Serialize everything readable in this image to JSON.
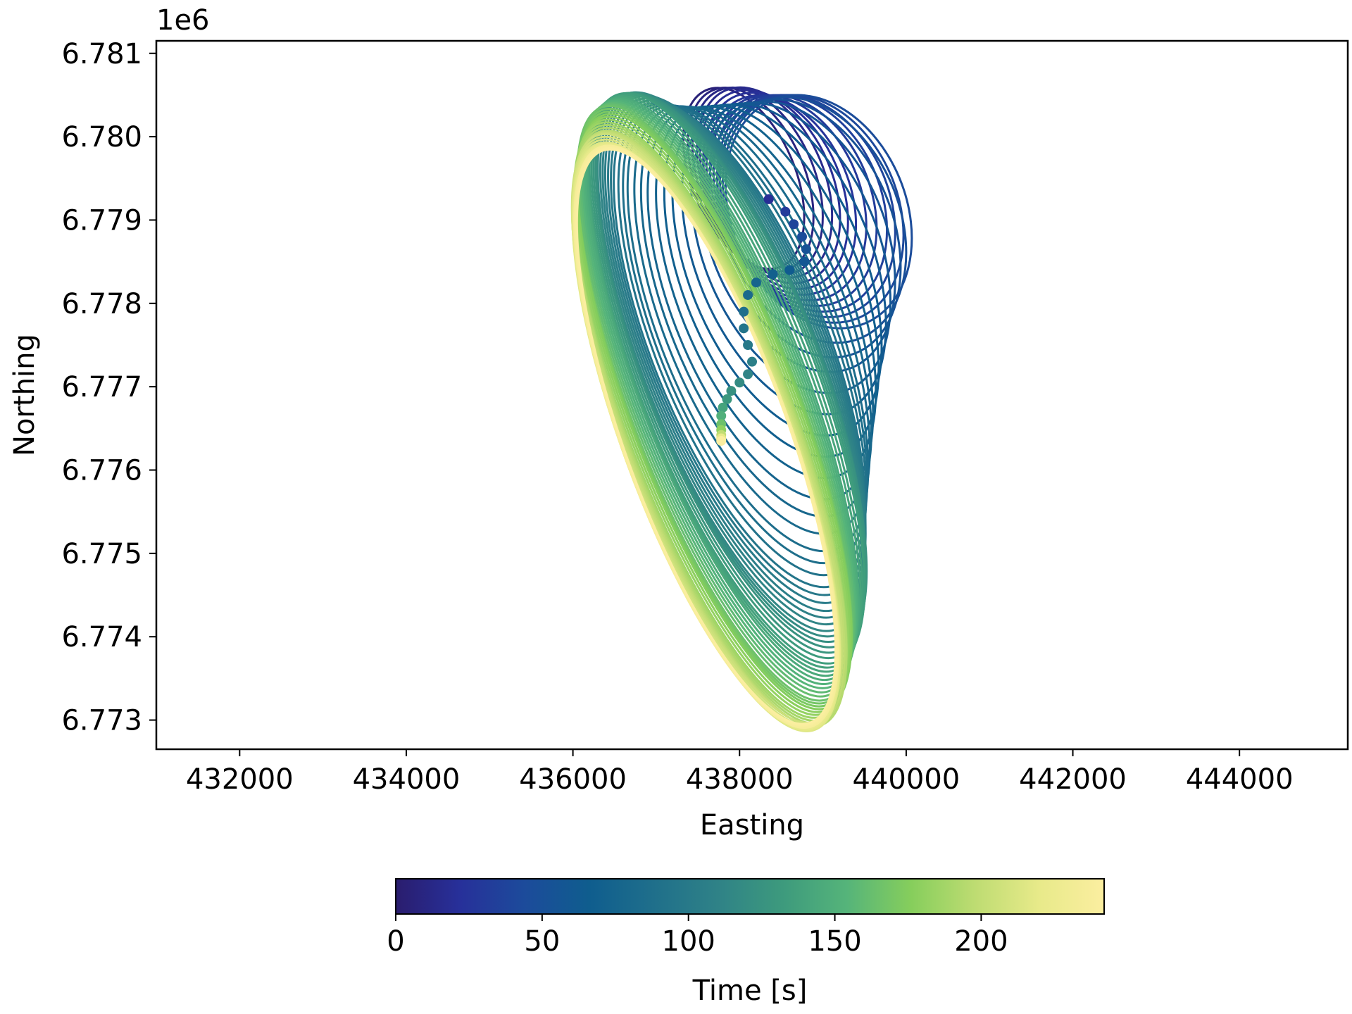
{
  "chart_data": {
    "type": "line",
    "title": "",
    "xlabel": "Easting",
    "ylabel": "Northing",
    "y_offset_label": "1e6",
    "xlim": [
      431000,
      445300
    ],
    "ylim": [
      6.77265,
      6.78115
    ],
    "x_ticks": [
      432000,
      434000,
      436000,
      438000,
      440000,
      442000,
      444000
    ],
    "x_tick_labels": [
      "432000",
      "434000",
      "436000",
      "438000",
      "440000",
      "442000",
      "444000"
    ],
    "y_ticks": [
      6.773,
      6.774,
      6.775,
      6.776,
      6.777,
      6.778,
      6.779,
      6.78,
      6.781
    ],
    "y_tick_labels": [
      "6.773",
      "6.774",
      "6.775",
      "6.776",
      "6.777",
      "6.778",
      "6.779",
      "6.780",
      "6.781"
    ],
    "grid": false,
    "legend": "none",
    "colormap": "YlGnBu_r-like (dark indigo to pale yellow)",
    "colormap_stops": [
      "#2a1d6e",
      "#27309a",
      "#1c4b9b",
      "#0f5d8e",
      "#1f6f8b",
      "#2f8287",
      "#3d9a7d",
      "#55b47a",
      "#86ce5c",
      "#bedc72",
      "#e8ea8a",
      "#fbeea0"
    ],
    "colorbar": {
      "label": "Time [s]",
      "range": [
        0,
        242
      ],
      "ticks": [
        0,
        50,
        100,
        150,
        200
      ],
      "tick_labels": [
        "0",
        "50",
        "100",
        "150",
        "200"
      ],
      "orientation": "horizontal",
      "placement": "bottom"
    },
    "series": [
      {
        "kind": "orbit_loops",
        "description_values": "elliptical swath outlines colored by time",
        "loops": [
          {
            "t": 5,
            "cx": 438050,
            "cy": 6.7795,
            "rx": 620,
            "ry": 1150
          },
          {
            "t": 15,
            "cx": 438300,
            "cy": 6.77945,
            "rx": 720,
            "ry": 1200
          },
          {
            "t": 25,
            "cx": 438500,
            "cy": 6.7793,
            "rx": 820,
            "ry": 1250
          },
          {
            "t": 35,
            "cx": 438750,
            "cy": 6.7792,
            "rx": 950,
            "ry": 1350
          },
          {
            "t": 45,
            "cx": 438950,
            "cy": 6.7791,
            "rx": 1050,
            "ry": 1450
          },
          {
            "t": 55,
            "cx": 438700,
            "cy": 6.7788,
            "rx": 1050,
            "ry": 1700
          },
          {
            "t": 65,
            "cx": 438450,
            "cy": 6.7784,
            "rx": 1050,
            "ry": 2100
          },
          {
            "t": 75,
            "cx": 438250,
            "cy": 6.778,
            "rx": 1050,
            "ry": 2500
          },
          {
            "t": 85,
            "cx": 438100,
            "cy": 6.7777,
            "rx": 1050,
            "ry": 2850
          },
          {
            "t": 95,
            "cx": 438000,
            "cy": 6.7775,
            "rx": 1050,
            "ry": 3100
          },
          {
            "t": 105,
            "cx": 437950,
            "cy": 6.7774,
            "rx": 1050,
            "ry": 3300
          },
          {
            "t": 115,
            "cx": 437900,
            "cy": 6.7773,
            "rx": 1050,
            "ry": 3450
          },
          {
            "t": 125,
            "cx": 437900,
            "cy": 6.7772,
            "rx": 1050,
            "ry": 3550
          },
          {
            "t": 135,
            "cx": 437850,
            "cy": 6.7771,
            "rx": 1050,
            "ry": 3650
          },
          {
            "t": 145,
            "cx": 437800,
            "cy": 6.777,
            "rx": 1000,
            "ry": 3700
          },
          {
            "t": 155,
            "cx": 437750,
            "cy": 6.7769,
            "rx": 1000,
            "ry": 3750
          },
          {
            "t": 165,
            "cx": 437700,
            "cy": 6.7768,
            "rx": 1000,
            "ry": 3800
          },
          {
            "t": 175,
            "cx": 437700,
            "cy": 6.7767,
            "rx": 1000,
            "ry": 3800
          },
          {
            "t": 185,
            "cx": 437650,
            "cy": 6.7766,
            "rx": 1000,
            "ry": 3800
          },
          {
            "t": 195,
            "cx": 437650,
            "cy": 6.7765,
            "rx": 1000,
            "ry": 3800
          },
          {
            "t": 205,
            "cx": 437600,
            "cy": 6.7765,
            "rx": 1000,
            "ry": 3750
          },
          {
            "t": 215,
            "cx": 437600,
            "cy": 6.7764,
            "rx": 1000,
            "ry": 3750
          },
          {
            "t": 225,
            "cx": 437600,
            "cy": 6.7764,
            "rx": 1000,
            "ry": 3700
          },
          {
            "t": 235,
            "cx": 437600,
            "cy": 6.7764,
            "rx": 1000,
            "ry": 3700
          },
          {
            "t": 242,
            "cx": 437600,
            "cy": 6.7764,
            "rx": 980,
            "ry": 3650
          }
        ]
      },
      {
        "kind": "track_points",
        "description_values": "center track points colored by time",
        "points": [
          {
            "t": 20,
            "x": 438350,
            "y": 6.77925
          },
          {
            "t": 30,
            "x": 438550,
            "y": 6.7791
          },
          {
            "t": 38,
            "x": 438650,
            "y": 6.77895
          },
          {
            "t": 45,
            "x": 438750,
            "y": 6.7788
          },
          {
            "t": 52,
            "x": 438800,
            "y": 6.77865
          },
          {
            "t": 58,
            "x": 438780,
            "y": 6.7785
          },
          {
            "t": 64,
            "x": 438600,
            "y": 6.7784
          },
          {
            "t": 70,
            "x": 438400,
            "y": 6.77835
          },
          {
            "t": 76,
            "x": 438200,
            "y": 6.77825
          },
          {
            "t": 82,
            "x": 438100,
            "y": 6.7781
          },
          {
            "t": 88,
            "x": 438050,
            "y": 6.7779
          },
          {
            "t": 94,
            "x": 438050,
            "y": 6.7777
          },
          {
            "t": 100,
            "x": 438100,
            "y": 6.7775
          },
          {
            "t": 106,
            "x": 438150,
            "y": 6.7773
          },
          {
            "t": 112,
            "x": 438100,
            "y": 6.77715
          },
          {
            "t": 118,
            "x": 438000,
            "y": 6.77705
          },
          {
            "t": 124,
            "x": 437900,
            "y": 6.77695
          },
          {
            "t": 130,
            "x": 437850,
            "y": 6.77685
          },
          {
            "t": 140,
            "x": 437800,
            "y": 6.77675
          },
          {
            "t": 150,
            "x": 437780,
            "y": 6.77665
          },
          {
            "t": 165,
            "x": 437780,
            "y": 6.77655
          },
          {
            "t": 180,
            "x": 437780,
            "y": 6.77648
          },
          {
            "t": 200,
            "x": 437780,
            "y": 6.77642
          },
          {
            "t": 220,
            "x": 437780,
            "y": 6.77638
          },
          {
            "t": 242,
            "x": 437780,
            "y": 6.77635
          }
        ]
      }
    ]
  }
}
